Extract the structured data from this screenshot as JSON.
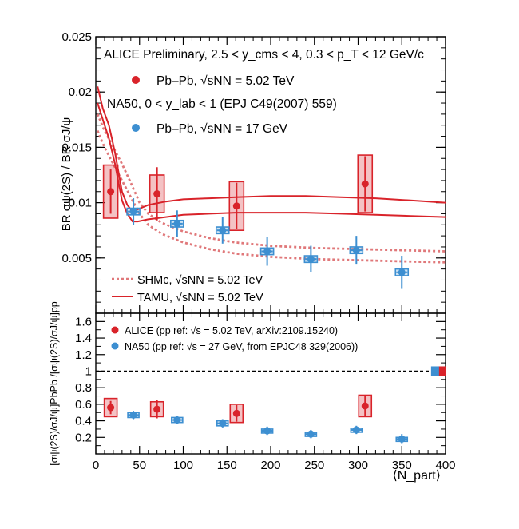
{
  "chart_data": [
    {
      "type": "scatter",
      "title": "ALICE Preliminary, 2.5 < y_cms < 4, 0.3 < p_T < 12 GeV/c",
      "xlabel": "",
      "ylabel": "BR σψ(2S) / BR σJ/ψ",
      "xlim": [
        0,
        400
      ],
      "ylim": [
        0,
        0.025
      ],
      "x_ticks": [
        "0",
        "50",
        "100",
        "150",
        "200",
        "250",
        "300",
        "350",
        "400"
      ],
      "y_ticks": [
        "0.005",
        "0.01",
        "0.015",
        "0.02",
        "0.025"
      ],
      "annotation": "NA50, 0 < y_lab < 1 (EPJ C49(2007) 559)",
      "series": [
        {
          "name": "Pb–Pb, √sNN = 5.02 TeV",
          "color": "#d9232a",
          "points": [
            {
              "x": 17,
              "y": 0.011,
              "stat": 0.002,
              "sys": 0.0024
            },
            {
              "x": 70,
              "y": 0.0108,
              "stat": 0.0024,
              "sys": 0.0017
            },
            {
              "x": 161,
              "y": 0.0097,
              "stat": 0.0021,
              "sys": 0.0022
            },
            {
              "x": 308,
              "y": 0.0117,
              "stat": 0.0025,
              "sys": 0.0026
            }
          ]
        },
        {
          "name": "Pb–Pb, √sNN = 17 GeV",
          "color": "#3d8fd1",
          "points": [
            {
              "x": 43,
              "y": 0.0092,
              "stat": 0.0012,
              "sys": 0.0003
            },
            {
              "x": 93,
              "y": 0.0081,
              "stat": 0.0012,
              "sys": 0.0003
            },
            {
              "x": 145,
              "y": 0.0075,
              "stat": 0.0012,
              "sys": 0.0003
            },
            {
              "x": 196,
              "y": 0.0056,
              "stat": 0.0013,
              "sys": 0.0003
            },
            {
              "x": 246,
              "y": 0.0049,
              "stat": 0.0012,
              "sys": 0.0003
            },
            {
              "x": 298,
              "y": 0.0057,
              "stat": 0.0013,
              "sys": 0.0003
            },
            {
              "x": 350,
              "y": 0.0037,
              "stat": 0.0015,
              "sys": 0.0003
            }
          ]
        }
      ],
      "models": [
        {
          "name": "SHMc, √sNN = 5.02 TeV",
          "color": "#e0787a",
          "style": "dotted",
          "bands": [
            {
              "x": [
                2,
                10,
                20,
                30,
                40,
                50,
                60,
                75,
                100,
                130,
                160,
                200,
                250,
                300,
                350,
                400
              ],
              "y": [
                0.018,
                0.0165,
                0.015,
                0.0135,
                0.0118,
                0.01,
                0.009,
                0.0082,
                0.0074,
                0.0068,
                0.0064,
                0.0061,
                0.0059,
                0.0058,
                0.0057,
                0.0056
              ]
            },
            {
              "x": [
                2,
                10,
                20,
                30,
                40,
                50,
                60,
                75,
                100,
                130,
                160,
                200,
                250,
                300,
                350,
                400
              ],
              "y": [
                0.0165,
                0.015,
                0.0135,
                0.012,
                0.0105,
                0.009,
                0.008,
                0.0072,
                0.0064,
                0.0058,
                0.0054,
                0.0051,
                0.0049,
                0.0048,
                0.0047,
                0.0046
              ]
            }
          ]
        },
        {
          "name": "TAMU, √sNN = 5.02 TeV",
          "color": "#d9232a",
          "style": "solid",
          "bands": [
            {
              "x": [
                2,
                8,
                15,
                22,
                30,
                36,
                42,
                48,
                60,
                80,
                100,
                130,
                160,
                200,
                240,
                280,
                320,
                360,
                400
              ],
              "y": [
                0.0205,
                0.0185,
                0.017,
                0.0145,
                0.011,
                0.0098,
                0.0092,
                0.0094,
                0.0098,
                0.0101,
                0.0103,
                0.0104,
                0.0105,
                0.0106,
                0.0106,
                0.0105,
                0.0104,
                0.0102,
                0.01
              ]
            },
            {
              "x": [
                2,
                8,
                15,
                22,
                30,
                36,
                42,
                48,
                60,
                80,
                100,
                130,
                160,
                200,
                240,
                280,
                320,
                360,
                400
              ],
              "y": [
                0.019,
                0.0175,
                0.0158,
                0.0135,
                0.0102,
                0.009,
                0.0083,
                0.0083,
                0.0085,
                0.0087,
                0.0089,
                0.009,
                0.0091,
                0.0091,
                0.0091,
                0.009,
                0.0089,
                0.0088,
                0.0087
              ]
            }
          ]
        }
      ]
    },
    {
      "type": "scatter",
      "xlabel": "⟨N_part⟩",
      "ylabel": "[σψ(2S)/σJ/ψ]PbPb /[σψ(2S)/σJ/ψ]pp",
      "xlim": [
        0,
        400
      ],
      "ylim": [
        0,
        1.7
      ],
      "x_ticks": [
        "0",
        "50",
        "100",
        "150",
        "200",
        "250",
        "300",
        "350",
        "400"
      ],
      "y_ticks": [
        "0.2",
        "0.4",
        "0.6",
        "0.8",
        "1",
        "1.2",
        "1.4",
        "1.6"
      ],
      "reference_line": 1,
      "series": [
        {
          "name": "ALICE (pp ref: √s = 5.02 TeV, arXiv:2109.15240)",
          "color": "#d9232a",
          "points": [
            {
              "x": 17,
              "y": 0.56,
              "stat": 0.08,
              "sys": 0.11
            },
            {
              "x": 70,
              "y": 0.54,
              "stat": 0.11,
              "sys": 0.09
            },
            {
              "x": 161,
              "y": 0.49,
              "stat": 0.1,
              "sys": 0.11
            },
            {
              "x": 308,
              "y": 0.58,
              "stat": 0.12,
              "sys": 0.13
            }
          ],
          "norm_box": {
            "x": 396,
            "y": 1.0,
            "err": 0.03
          }
        },
        {
          "name": "NA50 (pp ref: √s = 27 GeV, from EPJC48 329(2006))",
          "color": "#3d8fd1",
          "points": [
            {
              "x": 43,
              "y": 0.47,
              "stat": 0.05,
              "sys": 0.03
            },
            {
              "x": 93,
              "y": 0.41,
              "stat": 0.05,
              "sys": 0.03
            },
            {
              "x": 145,
              "y": 0.37,
              "stat": 0.05,
              "sys": 0.03
            },
            {
              "x": 196,
              "y": 0.28,
              "stat": 0.05,
              "sys": 0.02
            },
            {
              "x": 246,
              "y": 0.24,
              "stat": 0.05,
              "sys": 0.02
            },
            {
              "x": 298,
              "y": 0.29,
              "stat": 0.05,
              "sys": 0.02
            },
            {
              "x": 350,
              "y": 0.18,
              "stat": 0.06,
              "sys": 0.02
            }
          ],
          "norm_box": {
            "x": 388,
            "y": 1.0,
            "err": 0.03
          }
        }
      ]
    }
  ]
}
